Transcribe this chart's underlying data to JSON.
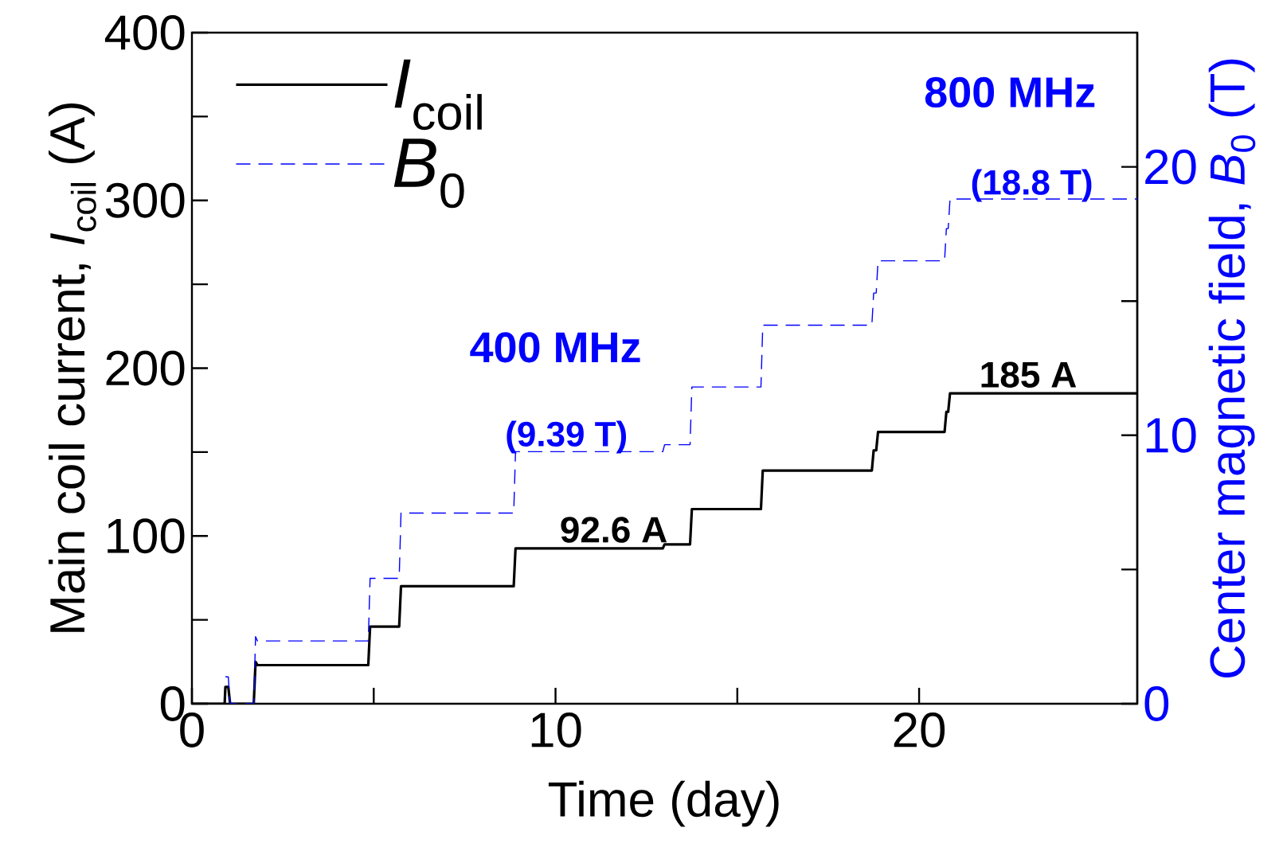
{
  "chart_data": {
    "type": "line",
    "xlabel": "Time (day)",
    "ylabel": "Main coil current,  *I*$_{coil}$ (A)",
    "y2label": "Center magnetic field,  *B*$_{0}$ (T)",
    "xlim": [
      0,
      26
    ],
    "xticks": [
      0,
      10,
      20
    ],
    "ylim": [
      0,
      400
    ],
    "yticks": [
      0,
      100,
      200,
      300,
      400
    ],
    "y2lim": [
      0,
      25
    ],
    "y2ticks": [
      0,
      10,
      20
    ],
    "x": [
      0,
      0.9,
      0.92,
      1.0,
      1.05,
      1.7,
      1.75,
      1.8,
      4.85,
      4.9,
      5.7,
      5.75,
      8.85,
      8.9,
      12.95,
      13.0,
      13.7,
      13.75,
      15.65,
      15.7,
      18.7,
      18.75,
      18.82,
      18.87,
      20.7,
      20.75,
      20.8,
      20.85,
      26
    ],
    "series": [
      {
        "name": "*I*$_{coil}$",
        "color": "#000000",
        "line_style": "solid",
        "values": [
          0,
          0,
          10,
          10,
          0,
          0,
          25,
          23,
          23,
          46,
          46,
          70,
          70,
          92.6,
          92.6,
          95,
          95,
          116,
          116,
          139,
          139,
          151,
          151,
          162,
          162,
          174,
          174,
          185,
          185
        ]
      },
      {
        "name": "*B*$_{0}$",
        "color": "#0000ff",
        "line_style": "dashed",
        "axis": "y2",
        "values": [
          null,
          null,
          1.0,
          1.0,
          0,
          0,
          2.5,
          2.34,
          2.34,
          4.67,
          4.67,
          7.1,
          7.1,
          9.39,
          9.39,
          9.65,
          9.65,
          11.8,
          11.8,
          14.1,
          14.1,
          15.3,
          15.3,
          16.5,
          16.5,
          17.7,
          17.7,
          18.8,
          18.8
        ]
      }
    ],
    "annotations": [
      {
        "text": "92.6 A",
        "x": 11.6,
        "y": 92.6
      },
      {
        "text": "185 A",
        "x": 23.0,
        "y": 185
      },
      "400 MHz",
      "(9.39 T)",
      "800 MHz",
      "(18.8 T)"
    ],
    "legend": "top left",
    "grid": false
  }
}
